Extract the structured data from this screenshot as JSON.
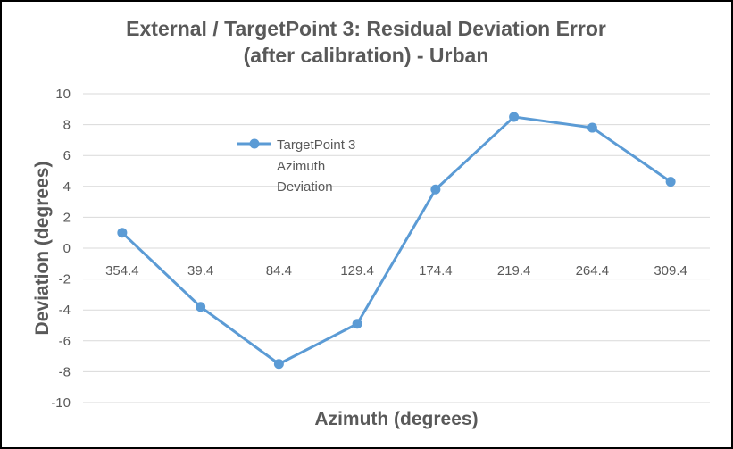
{
  "chart_data": {
    "type": "line",
    "title": [
      "External / TargetPoint 3:  Residual Deviation Error",
      "(after calibration) - Urban"
    ],
    "xlabel": "Azimuth (degrees)",
    "ylabel": "Deviation (degrees)",
    "categories": [
      "354.4",
      "39.4",
      "84.4",
      "129.4",
      "174.4",
      "219.4",
      "264.4",
      "309.4"
    ],
    "ylim": [
      -10,
      10
    ],
    "yticks": [
      10,
      8,
      6,
      4,
      2,
      0,
      -2,
      -4,
      -6,
      -8,
      -10
    ],
    "grid": true,
    "legend_position": "upper-left inside plot",
    "legend_lines": [
      "TargetPoint 3",
      "Azimuth",
      "Deviation"
    ],
    "series": [
      {
        "name": "TargetPoint 3 Azimuth Deviation",
        "color": "#5B9BD5",
        "values": [
          1.0,
          -3.8,
          -7.5,
          -4.9,
          3.8,
          8.5,
          7.8,
          4.3
        ]
      }
    ]
  }
}
